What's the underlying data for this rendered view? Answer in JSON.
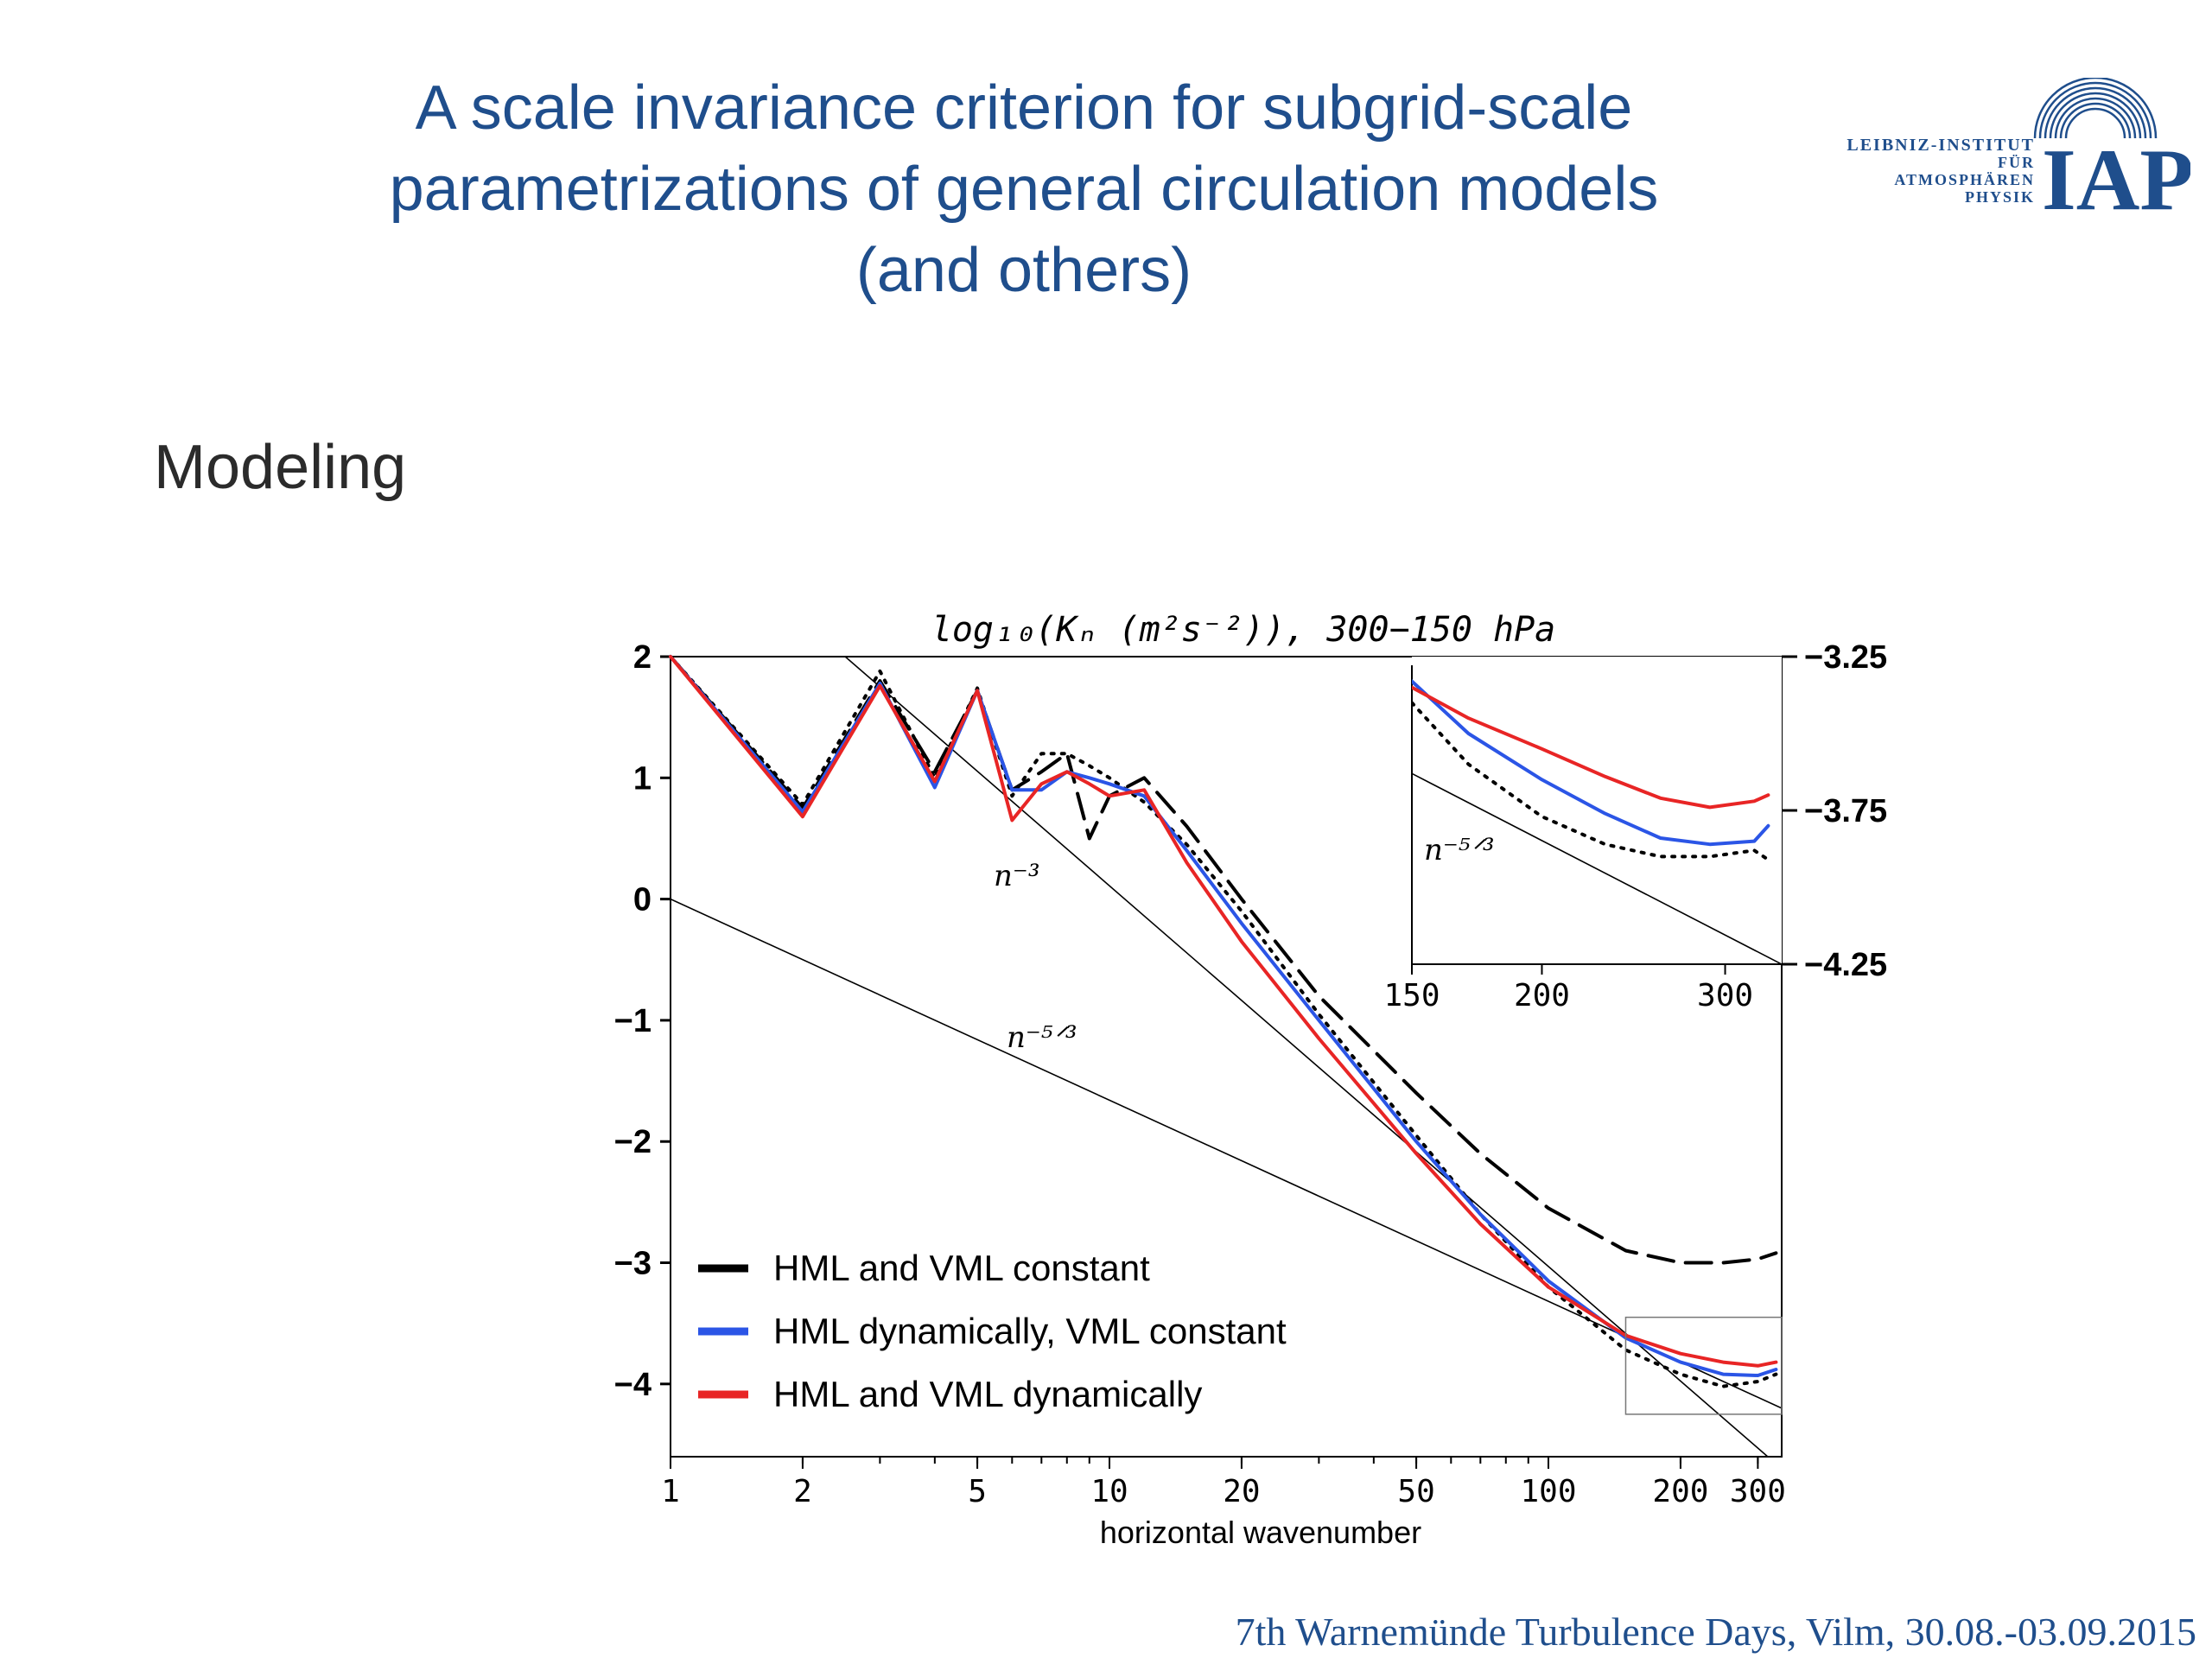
{
  "slide": {
    "title_lines": [
      "A scale invariance criterion for subgrid-scale",
      "parametrizations of general circulation models",
      "(and others)"
    ],
    "section": "Modeling",
    "footer": "7th Warnemünde Turbulence Days, Vilm, 30.08.-03.09.2015",
    "logo": {
      "text_lines": [
        "LEIBNIZ-INSTITUT",
        "FÜR",
        "ATMOSPHÄREN",
        "PHYSIK"
      ],
      "acronym": "IAP",
      "icon": "radiating-arcs-icon",
      "color": "#1f4e8c"
    }
  },
  "chart_data": [
    {
      "type": "line",
      "title": "log₁₀(Kₙ (m²s⁻²)), 300−150 hPa",
      "xlabel": "horizontal wavenumber",
      "ylabel": "",
      "x_scale": "log",
      "xlim": [
        1,
        340
      ],
      "ylim": [
        -4.6,
        2
      ],
      "xticks": [
        1,
        2,
        5,
        10,
        20,
        50,
        100,
        200,
        300
      ],
      "xtick_labels": [
        "1",
        "2",
        "5",
        "10",
        "20",
        "50",
        "100",
        "200",
        "300"
      ],
      "yticks": [
        2,
        1,
        0,
        -1,
        -2,
        -3,
        -4
      ],
      "ytick_labels": [
        "2",
        "1",
        "0",
        "−1",
        "−2",
        "−3",
        "−4"
      ],
      "reference_lines": [
        {
          "label": "n⁻³",
          "points": [
            [
              2.5,
              2.0
            ],
            [
              316,
              -4.6
            ]
          ]
        },
        {
          "label": "n⁻⁵ᐟ³",
          "points": [
            [
              1,
              0.0
            ],
            [
              340,
              -4.2
            ]
          ]
        }
      ],
      "legend_position": "bottom-left",
      "series": [
        {
          "name": "HML and VML constant",
          "color": "#000000",
          "style": "dashed",
          "x": [
            1,
            2,
            3,
            4,
            5,
            6,
            7,
            8,
            9,
            10,
            12,
            15,
            20,
            30,
            50,
            70,
            100,
            150,
            200,
            250,
            300,
            330
          ],
          "y": [
            2.0,
            0.75,
            1.8,
            1.05,
            1.72,
            0.9,
            1.05,
            1.2,
            0.5,
            0.85,
            1.0,
            0.6,
            0.0,
            -0.8,
            -1.6,
            -2.1,
            -2.55,
            -2.9,
            -3.0,
            -3.0,
            -2.97,
            -2.92
          ]
        },
        {
          "name": "",
          "color": "#000000",
          "style": "dotted",
          "x": [
            1,
            2,
            3,
            4,
            5,
            6,
            7,
            8,
            9,
            10,
            12,
            15,
            20,
            30,
            50,
            70,
            100,
            150,
            200,
            250,
            300,
            330
          ],
          "y": [
            2.0,
            0.78,
            1.88,
            1.0,
            1.74,
            0.85,
            1.2,
            1.2,
            1.1,
            1.0,
            0.8,
            0.45,
            -0.1,
            -0.95,
            -1.95,
            -2.6,
            -3.2,
            -3.72,
            -3.92,
            -4.02,
            -3.98,
            -3.92
          ]
        },
        {
          "name": "HML dynamically, VML constant",
          "color": "#2b55e6",
          "style": "solid",
          "x": [
            1,
            2,
            3,
            4,
            5,
            6,
            7,
            8,
            9,
            10,
            12,
            15,
            20,
            30,
            50,
            70,
            100,
            150,
            200,
            250,
            300,
            330
          ],
          "y": [
            2.0,
            0.72,
            1.78,
            0.92,
            1.72,
            0.9,
            0.9,
            1.05,
            1.0,
            0.95,
            0.85,
            0.4,
            -0.2,
            -1.0,
            -2.0,
            -2.6,
            -3.15,
            -3.62,
            -3.82,
            -3.92,
            -3.93,
            -3.88
          ]
        },
        {
          "name": "HML and VML dynamically",
          "color": "#e82525",
          "style": "solid",
          "x": [
            1,
            2,
            3,
            4,
            5,
            6,
            7,
            8,
            9,
            10,
            12,
            15,
            20,
            30,
            50,
            70,
            100,
            150,
            200,
            250,
            300,
            330
          ],
          "y": [
            2.0,
            0.68,
            1.76,
            0.97,
            1.72,
            0.65,
            0.95,
            1.05,
            0.95,
            0.85,
            0.9,
            0.3,
            -0.35,
            -1.15,
            -2.1,
            -2.68,
            -3.2,
            -3.6,
            -3.75,
            -3.82,
            -3.85,
            -3.82
          ]
        }
      ]
    },
    {
      "type": "line",
      "title": "",
      "inset_of": "main",
      "x_scale": "log",
      "xlim": [
        150,
        340
      ],
      "ylim": [
        -4.25,
        -3.25
      ],
      "xticks": [
        150,
        200,
        300
      ],
      "xtick_labels": [
        "150",
        "200",
        "300"
      ],
      "yticks": [
        -3.25,
        -3.75,
        -4.25
      ],
      "ytick_labels": [
        "−3.25",
        "−3.75",
        "−4.25"
      ],
      "y_axis_side": "right",
      "reference_lines": [
        {
          "label": "n⁻⁵ᐟ³",
          "points": [
            [
              150,
              -3.63
            ],
            [
              340,
              -4.25
            ]
          ]
        }
      ],
      "series": [
        {
          "name": "",
          "color": "#000000",
          "style": "dotted",
          "x": [
            150,
            170,
            200,
            230,
            260,
            290,
            320,
            330
          ],
          "y": [
            -3.4,
            -3.6,
            -3.77,
            -3.86,
            -3.9,
            -3.9,
            -3.88,
            -3.91
          ]
        },
        {
          "name": "",
          "color": "#2b55e6",
          "style": "solid",
          "x": [
            150,
            170,
            200,
            230,
            260,
            290,
            320,
            330
          ],
          "y": [
            -3.33,
            -3.5,
            -3.65,
            -3.76,
            -3.84,
            -3.86,
            -3.85,
            -3.8
          ]
        },
        {
          "name": "",
          "color": "#e82525",
          "style": "solid",
          "x": [
            150,
            170,
            200,
            230,
            260,
            290,
            320,
            330
          ],
          "y": [
            -3.35,
            -3.45,
            -3.55,
            -3.64,
            -3.71,
            -3.74,
            -3.72,
            -3.7
          ]
        }
      ]
    }
  ]
}
